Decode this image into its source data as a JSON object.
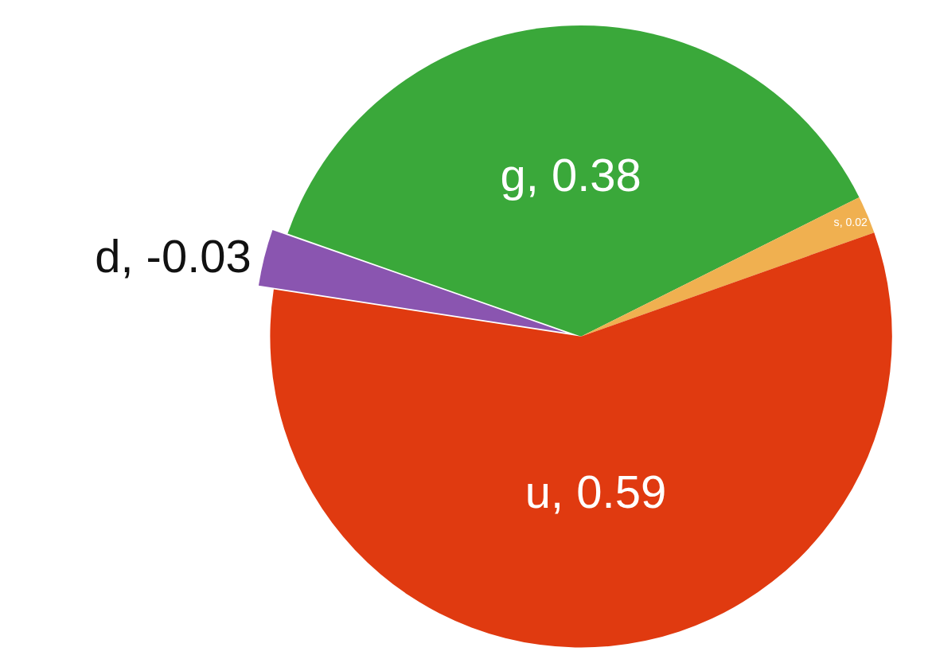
{
  "chart_data": {
    "type": "pie",
    "categories": [
      "g, 0.38",
      "s, 0.02",
      "u, 0.59",
      "d, -0.03"
    ],
    "values": [
      37.25,
      1.96,
      57.84,
      2.94
    ],
    "colors": [
      "#3aa83a",
      "#f0b050",
      "#e03a10",
      "#8a55b0"
    ],
    "legend": false
  }
}
